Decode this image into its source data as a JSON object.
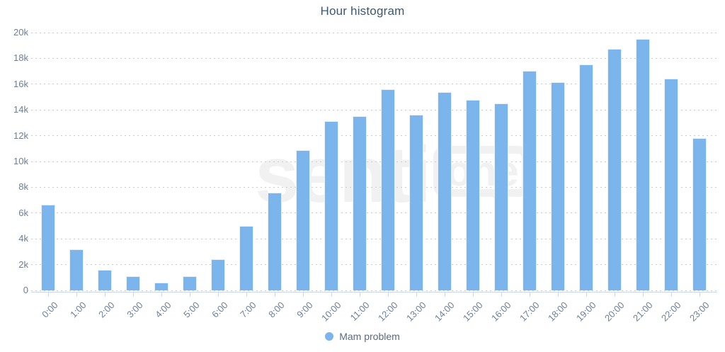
{
  "title": "Hour histogram",
  "watermark": {
    "senti": "senti",
    "one": "one"
  },
  "legend": {
    "marker_color": "#7cb5ec"
  },
  "colors": {
    "bar": "#7cb5ec",
    "title": "#3e576f",
    "axis_label": "#6d7e97",
    "grid_dots": "#cccccc",
    "axis_line": "#c9d7ea",
    "legend_text": "#5a6b80",
    "watermark": "#f1f1f1"
  },
  "chart_data": {
    "type": "bar",
    "title": "Hour histogram",
    "categories": [
      "0:00",
      "1:00",
      "2:00",
      "3:00",
      "4:00",
      "5:00",
      "6:00",
      "7:00",
      "8:00",
      "9:00",
      "10:00",
      "11:00",
      "12:00",
      "13:00",
      "14:00",
      "15:00",
      "16:00",
      "17:00",
      "18:00",
      "19:00",
      "20:00",
      "21:00",
      "22:00",
      "23:00"
    ],
    "series": [
      {
        "name": "Mam problem",
        "values": [
          6650,
          3200,
          1600,
          1100,
          600,
          1100,
          2400,
          5000,
          7600,
          10900,
          13150,
          13500,
          15600,
          13650,
          15400,
          14800,
          14500,
          17050,
          16150,
          17550,
          18750,
          19500,
          16450,
          11800
        ]
      }
    ],
    "xlabel": "",
    "ylabel": "",
    "ylim": [
      0,
      20000
    ],
    "ytick_step": 2000,
    "ytick_labels": [
      "0",
      "2k",
      "4k",
      "6k",
      "8k",
      "10k",
      "12k",
      "14k",
      "16k",
      "18k",
      "20k"
    ],
    "grid": "horizontal-dotted",
    "legend_position": "bottom-center"
  }
}
